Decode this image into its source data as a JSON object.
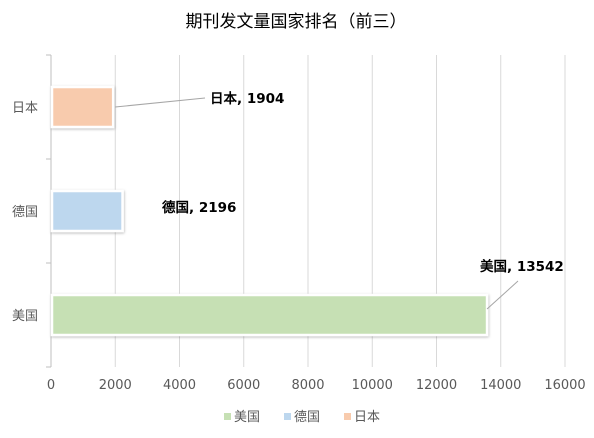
{
  "chart_data": {
    "type": "bar",
    "orientation": "horizontal",
    "title": "期刊发文量国家排名（前三）",
    "xlabel": "",
    "ylabel": "",
    "categories": [
      "美国",
      "德国",
      "日本"
    ],
    "values": [
      13542,
      2196,
      1904
    ],
    "colors": [
      "#c6e0b4",
      "#bdd7ee",
      "#f8cbad"
    ],
    "xlim": [
      0,
      16000
    ],
    "xticks": [
      0,
      2000,
      4000,
      6000,
      8000,
      10000,
      12000,
      14000,
      16000
    ],
    "data_labels": [
      "美国, 13542",
      "德国, 2196",
      "日本, 1904"
    ],
    "grid": true,
    "legend": {
      "position": "bottom",
      "entries": [
        "美国",
        "德国",
        "日本"
      ]
    }
  }
}
